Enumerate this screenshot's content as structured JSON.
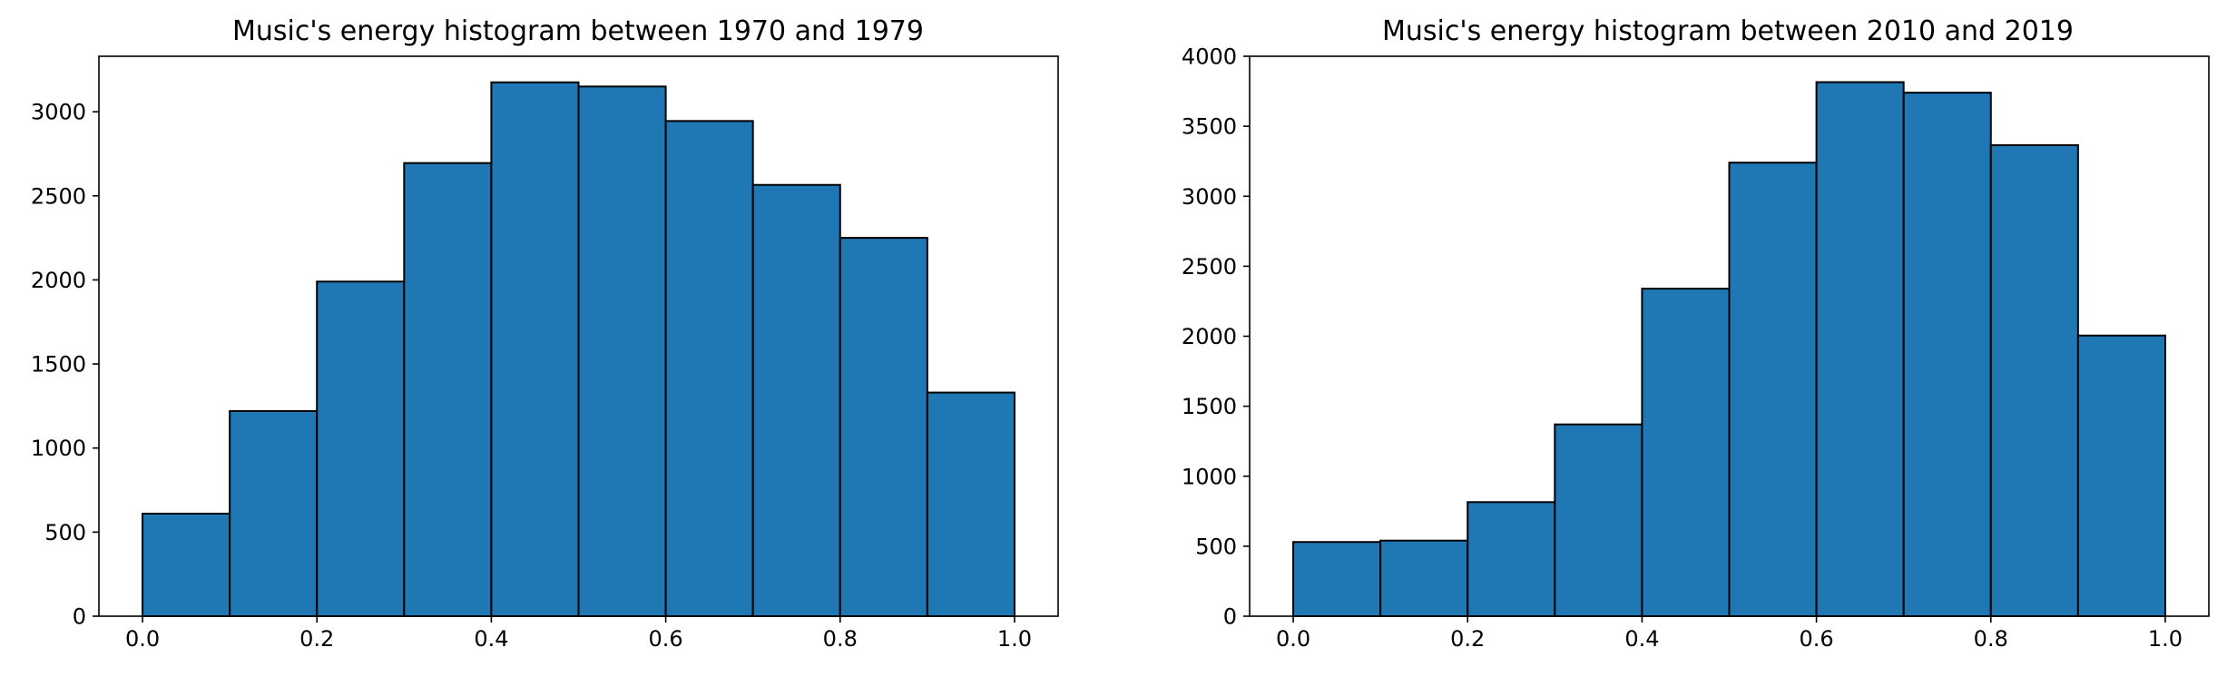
{
  "chart_data": [
    {
      "type": "bar",
      "title": "Music's energy histogram between 1970 and 1979",
      "xlabel": "",
      "ylabel": "",
      "bin_edges": [
        0.0,
        0.1,
        0.2,
        0.3,
        0.4,
        0.5,
        0.6,
        0.7,
        0.8,
        0.9,
        1.0
      ],
      "values": [
        610,
        1220,
        1990,
        2695,
        3175,
        3150,
        2945,
        2565,
        2250,
        1330
      ],
      "xlim": [
        -0.05,
        1.05
      ],
      "ylim": [
        0,
        3330
      ],
      "xticks": [
        0.0,
        0.2,
        0.4,
        0.6,
        0.8,
        1.0
      ],
      "xtick_labels": [
        "0.0",
        "0.2",
        "0.4",
        "0.6",
        "0.8",
        "1.0"
      ],
      "yticks": [
        0,
        500,
        1000,
        1500,
        2000,
        2500,
        3000
      ],
      "ytick_labels": [
        "0",
        "500",
        "1000",
        "1500",
        "2000",
        "2500",
        "3000"
      ],
      "bar_color": "#1f77b4",
      "edge_color": "#000000",
      "grid": false
    },
    {
      "type": "bar",
      "title": "Music's energy histogram between 2010 and 2019",
      "xlabel": "",
      "ylabel": "",
      "bin_edges": [
        0.0,
        0.1,
        0.2,
        0.3,
        0.4,
        0.5,
        0.6,
        0.7,
        0.8,
        0.9,
        1.0
      ],
      "values": [
        530,
        540,
        815,
        1370,
        2340,
        3240,
        3815,
        3740,
        3365,
        2005
      ],
      "xlim": [
        -0.05,
        1.05
      ],
      "ylim": [
        0,
        4000
      ],
      "xticks": [
        0.0,
        0.2,
        0.4,
        0.6,
        0.8,
        1.0
      ],
      "xtick_labels": [
        "0.0",
        "0.2",
        "0.4",
        "0.6",
        "0.8",
        "1.0"
      ],
      "yticks": [
        0,
        500,
        1000,
        1500,
        2000,
        2500,
        3000,
        3500,
        4000
      ],
      "ytick_labels": [
        "0",
        "500",
        "1000",
        "1500",
        "2000",
        "2500",
        "3000",
        "3500",
        "4000"
      ],
      "bar_color": "#1f77b4",
      "edge_color": "#000000",
      "grid": false
    }
  ]
}
